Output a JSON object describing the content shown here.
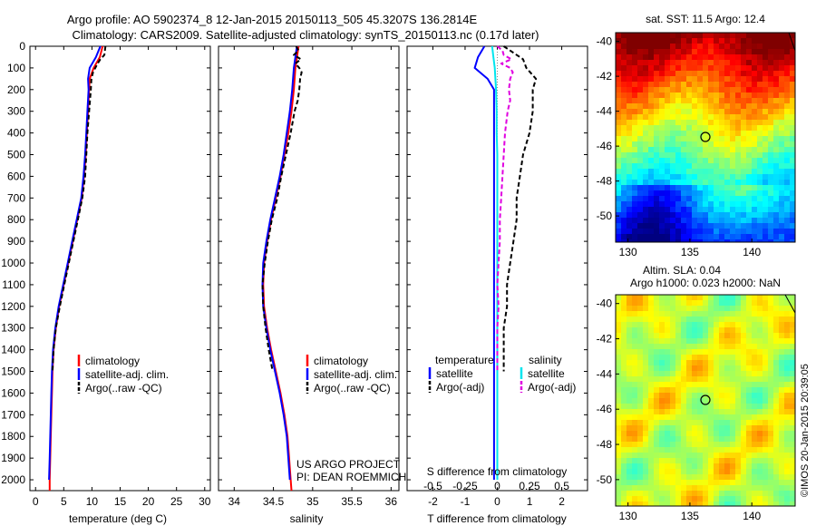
{
  "header": {
    "title_line1": "Argo profile: AO 5902374_8 12-Jan-2015 20150113_505 45.3207S 136.2814E",
    "title_line2": "Climatology: CARS2009. Satellite-adjusted climatology: synTS_20150113.nc (0.17d later)"
  },
  "colors": {
    "climatology": "#ff0000",
    "satellite": "#0000ff",
    "argo": "#000000",
    "satellite_salinity": "#00e5ee",
    "argo_salinity": "#e000e0"
  },
  "legend_labels": {
    "climatology": "climatology",
    "satellite_clim": "satellite-adj. clim.",
    "argo_raw": "Argo(..raw -QC)",
    "temperature": "temperature",
    "salinity": "salinity",
    "satellite": "satellite",
    "argo_adj": "Argo(-adj)"
  },
  "annotations": {
    "project": "US ARGO PROJECT",
    "pi": "PI: DEAN ROEMMICH",
    "sst": "sat. SST: 11.5 Argo: 12.4",
    "sla": "Altim. SLA: 0.04",
    "argo_h": "Argo h1000: 0.023 h2000: NaN",
    "credit": "©IMOS 20-Jan-2015 20:39:05"
  },
  "chart_data": [
    {
      "type": "line",
      "xlabel": "temperature (deg C)",
      "ylabel": "",
      "xlim": [
        -1,
        31
      ],
      "ylim": [
        2050,
        0
      ],
      "xticks": [
        0,
        5,
        10,
        15,
        20,
        25,
        30
      ],
      "yticks": [
        0,
        100,
        200,
        300,
        400,
        500,
        600,
        700,
        800,
        900,
        1000,
        1100,
        1200,
        1300,
        1400,
        1500,
        1600,
        1700,
        1800,
        1900,
        2000
      ],
      "legend": "center",
      "series": [
        {
          "name": "climatology",
          "color": "#ff0000",
          "depth": [
            0,
            50,
            100,
            150,
            200,
            300,
            400,
            500,
            600,
            700,
            800,
            900,
            1000,
            1100,
            1200,
            1300,
            1400,
            1500,
            1600,
            1700,
            1800,
            1900,
            2000,
            2050
          ],
          "values": [
            11.9,
            11.4,
            10.3,
            9.6,
            9.5,
            9.3,
            9.1,
            8.9,
            8.6,
            8.2,
            7.4,
            6.6,
            5.8,
            5.0,
            4.2,
            3.6,
            3.2,
            3.0,
            2.9,
            2.8,
            2.7,
            2.6,
            2.5,
            2.5
          ]
        },
        {
          "name": "satellite-adj. clim.",
          "color": "#0000ff",
          "depth": [
            0,
            50,
            100,
            150,
            200,
            300,
            400,
            500,
            600,
            700,
            800,
            900,
            1000,
            1100,
            1200,
            1300,
            1400,
            1500,
            1600,
            1700,
            1800,
            1900,
            2000
          ],
          "values": [
            11.5,
            10.7,
            9.6,
            9.3,
            9.4,
            9.2,
            9.0,
            8.8,
            8.5,
            8.1,
            7.3,
            6.5,
            5.7,
            4.9,
            4.1,
            3.5,
            3.1,
            2.9,
            2.8,
            2.7,
            2.6,
            2.5,
            2.4
          ]
        },
        {
          "name": "Argo(..raw -QC)",
          "color": "#000000",
          "dashed": true,
          "depth": [
            0,
            20,
            40,
            60,
            80,
            100,
            120,
            150,
            200,
            300,
            400,
            500,
            600,
            700,
            800,
            900,
            1000,
            1100,
            1200,
            1300,
            1400,
            1500
          ],
          "values": [
            12.4,
            12.3,
            12.2,
            11.5,
            11.0,
            10.6,
            10.2,
            9.9,
            9.8,
            9.5,
            9.2,
            9.0,
            8.8,
            8.3,
            7.5,
            6.7,
            5.9,
            5.1,
            4.3,
            3.6,
            3.2,
            3.0
          ]
        }
      ]
    },
    {
      "type": "line",
      "xlabel": "salinity",
      "ylabel": "",
      "xlim": [
        33.8,
        36.1
      ],
      "ylim": [
        2050,
        0
      ],
      "xticks": [
        34,
        34.5,
        35,
        35.5,
        36
      ],
      "legend": "center",
      "series": [
        {
          "name": "climatology",
          "color": "#ff0000",
          "depth": [
            0,
            100,
            200,
            300,
            400,
            500,
            600,
            700,
            800,
            900,
            1000,
            1100,
            1200,
            1300,
            1400,
            1500,
            1600,
            1700,
            1800,
            1900,
            2000,
            2050
          ],
          "values": [
            34.82,
            34.78,
            34.76,
            34.73,
            34.69,
            34.64,
            34.59,
            34.53,
            34.47,
            34.42,
            34.38,
            34.37,
            34.38,
            34.42,
            34.47,
            34.53,
            34.59,
            34.64,
            34.68,
            34.7,
            34.72,
            34.73
          ]
        },
        {
          "name": "satellite-adj. clim.",
          "color": "#0000ff",
          "depth": [
            0,
            100,
            200,
            300,
            400,
            500,
            600,
            700,
            800,
            900,
            1000,
            1100,
            1200,
            1300,
            1400,
            1500,
            1600,
            1700,
            1800,
            1900,
            2000
          ],
          "values": [
            34.8,
            34.76,
            34.74,
            34.71,
            34.67,
            34.63,
            34.58,
            34.52,
            34.46,
            34.41,
            34.37,
            34.36,
            34.37,
            34.41,
            34.46,
            34.52,
            34.58,
            34.63,
            34.67,
            34.69,
            34.71
          ]
        },
        {
          "name": "Argo(..raw -QC)",
          "color": "#000000",
          "dashed": true,
          "depth": [
            0,
            20,
            40,
            60,
            80,
            100,
            120,
            150,
            200,
            250,
            300,
            400,
            500,
            600,
            700,
            800,
            900,
            1000,
            1100,
            1200,
            1300,
            1400,
            1500
          ],
          "values": [
            34.79,
            34.82,
            34.76,
            34.85,
            34.78,
            34.83,
            34.86,
            34.84,
            34.83,
            34.81,
            34.77,
            34.72,
            34.66,
            34.6,
            34.55,
            34.48,
            34.43,
            34.39,
            34.36,
            34.37,
            34.4,
            34.44,
            34.49
          ]
        }
      ]
    },
    {
      "type": "line",
      "xlabel": "T difference from climatology",
      "ylabel": "",
      "xlim": [
        -2.8,
        2.8
      ],
      "ylim": [
        2050,
        0
      ],
      "xticks": [
        -2,
        -1,
        0,
        1,
        2
      ],
      "secondary_xlabel": "S difference from climatology",
      "secondary_xlim": [
        -0.7,
        0.7
      ],
      "secondary_xticks": [
        -0.5,
        -0.25,
        0,
        0.25,
        0.5
      ],
      "legend": "center",
      "series": [
        {
          "name": "satellite",
          "group": "temperature",
          "axis": "T",
          "color": "#0000ff",
          "depth": [
            0,
            50,
            100,
            150,
            200,
            300,
            400,
            500,
            600,
            700,
            800,
            900,
            1000,
            1100,
            1200,
            1300,
            1400,
            1500,
            1600,
            1700,
            1800,
            1900,
            2000
          ],
          "values": [
            -0.4,
            -0.6,
            -0.7,
            -0.3,
            -0.1,
            -0.1,
            -0.1,
            -0.1,
            -0.1,
            -0.1,
            -0.1,
            -0.1,
            -0.1,
            -0.1,
            -0.1,
            -0.1,
            -0.1,
            -0.1,
            -0.1,
            -0.1,
            -0.1,
            -0.1,
            -0.1
          ]
        },
        {
          "name": "Argo(-adj)",
          "group": "temperature",
          "axis": "T",
          "color": "#000000",
          "dashed": true,
          "depth": [
            0,
            30,
            60,
            100,
            150,
            200,
            300,
            400,
            500,
            600,
            700,
            800,
            900,
            1000,
            1100,
            1200,
            1300,
            1400,
            1500
          ],
          "values": [
            0.2,
            0.5,
            0.8,
            0.9,
            1.2,
            1.1,
            1.1,
            1.0,
            0.8,
            0.7,
            0.6,
            0.6,
            0.5,
            0.4,
            0.3,
            0.3,
            0.2,
            0.2,
            0.2
          ]
        },
        {
          "name": "satellite",
          "group": "salinity",
          "axis": "S",
          "color": "#00e5ee",
          "depth": [
            0,
            50,
            100,
            150,
            200,
            300,
            400,
            500,
            600,
            700,
            800,
            900,
            1000,
            1100,
            1200,
            1300,
            1400,
            1500,
            1600,
            1700,
            1800,
            1900,
            2000
          ],
          "values": [
            -0.04,
            -0.03,
            -0.02,
            -0.015,
            -0.01,
            -0.005,
            -0.005,
            0,
            0,
            0,
            0,
            0,
            0,
            0,
            0,
            0,
            0,
            0,
            0,
            0,
            0,
            0,
            0
          ]
        },
        {
          "name": "Argo(-adj)",
          "group": "salinity",
          "axis": "S",
          "color": "#e000e0",
          "dashed": true,
          "depth": [
            0,
            20,
            40,
            60,
            80,
            100,
            120,
            150,
            200,
            250,
            300,
            400,
            500,
            600,
            700,
            800,
            900,
            1000,
            1100,
            1200,
            1300,
            1400,
            1500
          ],
          "values": [
            0.0,
            0.04,
            0.05,
            0.11,
            0.03,
            0.1,
            0.12,
            0.1,
            0.09,
            0.1,
            0.08,
            0.06,
            0.05,
            0.04,
            0.03,
            0.02,
            0.02,
            0.01,
            0.0,
            0.01,
            0.0,
            0.0,
            0.0
          ]
        }
      ]
    },
    {
      "type": "heatmap",
      "title": "sat. SST: 11.5 Argo: 12.4",
      "xlim": [
        129,
        143.5
      ],
      "ylim": [
        -51.5,
        -39.5
      ],
      "xticks": [
        130,
        135,
        140
      ],
      "yticks": [
        -40,
        -42,
        -44,
        -46,
        -48,
        -50
      ],
      "marker": {
        "lon": 136.28,
        "lat": -45.32
      }
    },
    {
      "type": "heatmap",
      "title": "Altim. SLA: 0.04",
      "subtitle": "Argo h1000: 0.023 h2000: NaN",
      "xlim": [
        129,
        143.5
      ],
      "ylim": [
        -51.5,
        -39.5
      ],
      "xticks": [
        130,
        135,
        140
      ],
      "yticks": [
        -40,
        -42,
        -44,
        -46,
        -48,
        -50
      ],
      "marker": {
        "lon": 136.28,
        "lat": -45.32
      }
    }
  ]
}
